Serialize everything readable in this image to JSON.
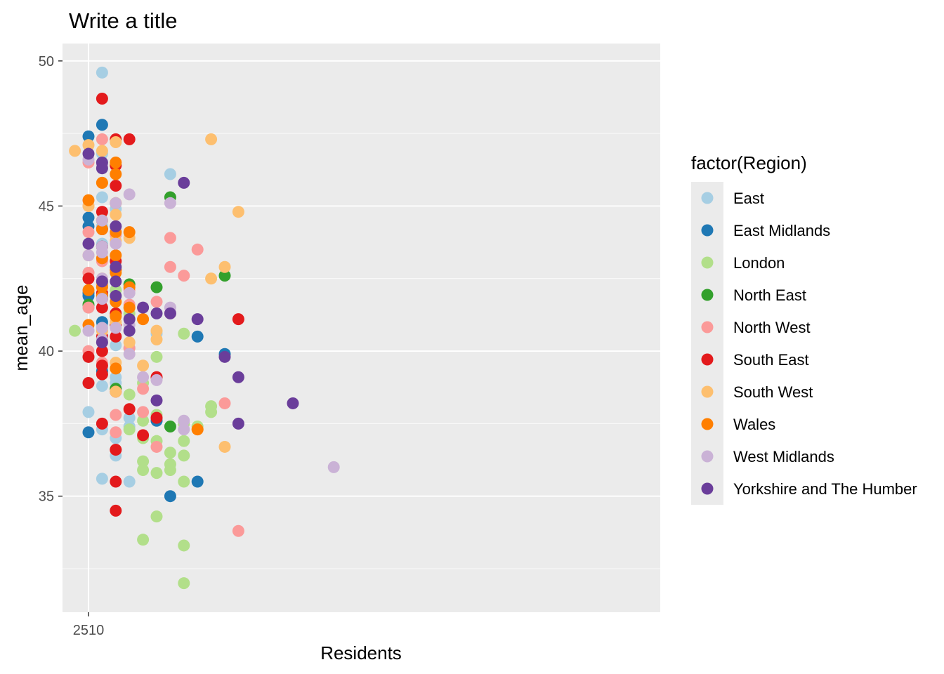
{
  "chart_data": {
    "type": "scatter",
    "title": "Write a title",
    "xlabel": "Residents",
    "ylabel": "mean_age",
    "ylim": [
      31.0,
      50.6
    ],
    "y_ticks": [
      35,
      40,
      45,
      50
    ],
    "x_tick_label": "2510",
    "grid": true,
    "legend": {
      "title": "factor(Region)",
      "placement": "right"
    },
    "series": [
      {
        "name": "East",
        "color": "#A6CEE3",
        "points": [
          [
            1,
            49.6
          ],
          [
            1,
            45.3
          ],
          [
            2,
            44.9
          ],
          [
            1,
            44.3
          ],
          [
            1,
            43.7
          ],
          [
            0,
            42.7
          ],
          [
            1,
            42.4
          ],
          [
            2,
            42.1
          ],
          [
            0,
            41.5
          ],
          [
            1,
            40.9
          ],
          [
            2,
            40.2
          ],
          [
            0,
            39.8
          ],
          [
            1,
            39.4
          ],
          [
            2,
            39.1
          ],
          [
            0,
            38.9
          ],
          [
            1,
            38.8
          ],
          [
            0,
            37.9
          ],
          [
            1,
            37.3
          ],
          [
            2,
            37.0
          ],
          [
            3,
            37.4
          ],
          [
            2,
            36.4
          ],
          [
            1,
            35.6
          ],
          [
            3,
            35.5
          ],
          [
            3,
            37.7
          ],
          [
            2,
            38.9
          ],
          [
            5,
            40.6
          ],
          [
            6,
            46.1
          ],
          [
            1,
            46.8
          ]
        ]
      },
      {
        "name": "East Midlands",
        "color": "#1F78B4",
        "points": [
          [
            0,
            47.4
          ],
          [
            1,
            47.8
          ],
          [
            0,
            44.6
          ],
          [
            0,
            44.3
          ],
          [
            1,
            43.6
          ],
          [
            0,
            42.0
          ],
          [
            0,
            41.9
          ],
          [
            1,
            41.0
          ],
          [
            0,
            37.2
          ],
          [
            5,
            37.6
          ],
          [
            6,
            35.0
          ],
          [
            8,
            40.5
          ],
          [
            8,
            35.5
          ],
          [
            10,
            39.9
          ],
          [
            1,
            39.3
          ]
        ]
      },
      {
        "name": "London",
        "color": "#B2DF8A",
        "points": [
          [
            -1,
            40.7
          ],
          [
            1,
            40.4
          ],
          [
            2,
            38.7
          ],
          [
            3,
            38.5
          ],
          [
            3,
            37.3
          ],
          [
            4,
            37.6
          ],
          [
            4,
            37.0
          ],
          [
            4,
            36.2
          ],
          [
            4,
            35.9
          ],
          [
            5,
            35.8
          ],
          [
            4,
            33.5
          ],
          [
            5,
            34.3
          ],
          [
            5,
            36.9
          ],
          [
            5,
            37.8
          ],
          [
            5,
            39.8
          ],
          [
            6,
            36.5
          ],
          [
            6,
            36.1
          ],
          [
            6,
            35.9
          ],
          [
            7,
            35.5
          ],
          [
            7,
            36.4
          ],
          [
            7,
            33.3
          ],
          [
            7,
            32.0
          ],
          [
            7,
            37.5
          ],
          [
            7,
            36.9
          ],
          [
            7,
            40.6
          ],
          [
            8,
            37.4
          ],
          [
            9,
            38.1
          ],
          [
            9,
            37.9
          ],
          [
            3,
            40.1
          ],
          [
            4,
            38.9
          ],
          [
            2,
            42.1
          ],
          [
            3,
            41.3
          ]
        ]
      },
      {
        "name": "North East",
        "color": "#33A02C",
        "points": [
          [
            3,
            42.3
          ],
          [
            5,
            42.2
          ],
          [
            6,
            45.3
          ],
          [
            6,
            37.4
          ],
          [
            10,
            42.6
          ],
          [
            2,
            38.7
          ],
          [
            0,
            41.6
          ],
          [
            1,
            41.9
          ]
        ]
      },
      {
        "name": "North West",
        "color": "#FB9A99",
        "points": [
          [
            0,
            46.5
          ],
          [
            1,
            47.3
          ],
          [
            0,
            45.0
          ],
          [
            0,
            44.1
          ],
          [
            0,
            42.7
          ],
          [
            0,
            41.5
          ],
          [
            0,
            40.0
          ],
          [
            1,
            39.6
          ],
          [
            2,
            37.8
          ],
          [
            2,
            37.2
          ],
          [
            2,
            36.6
          ],
          [
            3,
            41.6
          ],
          [
            3,
            40.1
          ],
          [
            4,
            38.7
          ],
          [
            4,
            37.9
          ],
          [
            5,
            36.7
          ],
          [
            5,
            41.7
          ],
          [
            6,
            43.9
          ],
          [
            6,
            42.9
          ],
          [
            6,
            41.3
          ],
          [
            7,
            42.6
          ],
          [
            8,
            43.5
          ],
          [
            5,
            39.1
          ],
          [
            10,
            38.2
          ],
          [
            11,
            33.8
          ],
          [
            2,
            44.0
          ],
          [
            3,
            42.1
          ],
          [
            1,
            43.1
          ]
        ]
      },
      {
        "name": "South East",
        "color": "#E31A1C",
        "points": [
          [
            1,
            48.7
          ],
          [
            2,
            47.3
          ],
          [
            3,
            47.3
          ],
          [
            2,
            46.4
          ],
          [
            2,
            45.7
          ],
          [
            1,
            44.8
          ],
          [
            1,
            44.2
          ],
          [
            1,
            43.6
          ],
          [
            2,
            43.1
          ],
          [
            0,
            42.5
          ],
          [
            1,
            42.3
          ],
          [
            1,
            42.0
          ],
          [
            1,
            41.5
          ],
          [
            2,
            41.3
          ],
          [
            2,
            40.9
          ],
          [
            1,
            40.5
          ],
          [
            1,
            40.0
          ],
          [
            0,
            39.8
          ],
          [
            1,
            39.5
          ],
          [
            1,
            39.2
          ],
          [
            0,
            38.9
          ],
          [
            2,
            38.6
          ],
          [
            3,
            38.0
          ],
          [
            1,
            37.5
          ],
          [
            2,
            36.6
          ],
          [
            2,
            35.5
          ],
          [
            2,
            34.5
          ],
          [
            5,
            37.7
          ],
          [
            4,
            37.1
          ],
          [
            5,
            39.1
          ],
          [
            11,
            41.1
          ],
          [
            2,
            40.5
          ],
          [
            1,
            41.8
          ],
          [
            2,
            42.8
          ]
        ]
      },
      {
        "name": "South West",
        "color": "#FDBF6F",
        "points": [
          [
            -1,
            46.9
          ],
          [
            0,
            47.1
          ],
          [
            1,
            46.9
          ],
          [
            1,
            45.8
          ],
          [
            2,
            47.2
          ],
          [
            0,
            45.0
          ],
          [
            1,
            44.5
          ],
          [
            2,
            44.7
          ],
          [
            3,
            43.9
          ],
          [
            0,
            43.3
          ],
          [
            1,
            42.3
          ],
          [
            2,
            41.0
          ],
          [
            1,
            40.7
          ],
          [
            3,
            40.3
          ],
          [
            4,
            41.1
          ],
          [
            5,
            40.4
          ],
          [
            5,
            40.7
          ],
          [
            4,
            39.5
          ],
          [
            2,
            38.6
          ],
          [
            2,
            39.6
          ],
          [
            9,
            47.3
          ],
          [
            11,
            44.8
          ],
          [
            9,
            42.5
          ],
          [
            10,
            42.9
          ],
          [
            10,
            36.7
          ],
          [
            8,
            37.3
          ],
          [
            1,
            42.5
          ],
          [
            2,
            43.8
          ]
        ]
      },
      {
        "name": "Wales",
        "color": "#FF7F00",
        "points": [
          [
            0,
            45.2
          ],
          [
            1,
            45.8
          ],
          [
            1,
            44.5
          ],
          [
            1,
            44.2
          ],
          [
            2,
            46.1
          ],
          [
            2,
            46.5
          ],
          [
            2,
            45.1
          ],
          [
            2,
            44.1
          ],
          [
            1,
            43.2
          ],
          [
            2,
            43.3
          ],
          [
            2,
            42.7
          ],
          [
            2,
            42.8
          ],
          [
            0,
            42.1
          ],
          [
            1,
            41.9
          ],
          [
            2,
            41.7
          ],
          [
            3,
            42.2
          ],
          [
            2,
            41.2
          ],
          [
            3,
            41.5
          ],
          [
            4,
            41.1
          ],
          [
            2,
            39.4
          ],
          [
            0,
            40.9
          ],
          [
            8,
            37.3
          ],
          [
            3,
            44.1
          ],
          [
            1,
            42.2
          ]
        ]
      },
      {
        "name": "West Midlands",
        "color": "#CAB2D6",
        "points": [
          [
            0,
            46.6
          ],
          [
            1,
            46.4
          ],
          [
            2,
            45.1
          ],
          [
            3,
            45.4
          ],
          [
            1,
            44.5
          ],
          [
            1,
            43.6
          ],
          [
            2,
            43.7
          ],
          [
            0,
            43.3
          ],
          [
            1,
            42.5
          ],
          [
            1,
            41.8
          ],
          [
            0,
            40.7
          ],
          [
            1,
            40.4
          ],
          [
            1,
            40.8
          ],
          [
            2,
            40.8
          ],
          [
            3,
            40.9
          ],
          [
            3,
            42.0
          ],
          [
            5,
            39.0
          ],
          [
            4,
            39.1
          ],
          [
            6,
            41.5
          ],
          [
            6,
            45.1
          ],
          [
            7,
            37.6
          ],
          [
            7,
            37.3
          ],
          [
            18,
            36.0
          ],
          [
            3,
            39.9
          ],
          [
            2,
            44.3
          ],
          [
            1,
            43.4
          ]
        ]
      },
      {
        "name": "Yorkshire and The Humber",
        "color": "#6A3D9A",
        "points": [
          [
            0,
            46.8
          ],
          [
            1,
            46.5
          ],
          [
            1,
            46.3
          ],
          [
            0,
            43.7
          ],
          [
            1,
            42.4
          ],
          [
            2,
            44.3
          ],
          [
            2,
            42.9
          ],
          [
            2,
            41.9
          ],
          [
            3,
            41.1
          ],
          [
            3,
            40.7
          ],
          [
            4,
            41.5
          ],
          [
            5,
            41.3
          ],
          [
            5,
            38.3
          ],
          [
            6,
            41.3
          ],
          [
            7,
            45.8
          ],
          [
            8,
            41.1
          ],
          [
            10,
            39.8
          ],
          [
            11,
            39.1
          ],
          [
            11,
            37.5
          ],
          [
            15,
            38.2
          ],
          [
            1,
            40.3
          ],
          [
            2,
            42.4
          ]
        ]
      }
    ]
  }
}
